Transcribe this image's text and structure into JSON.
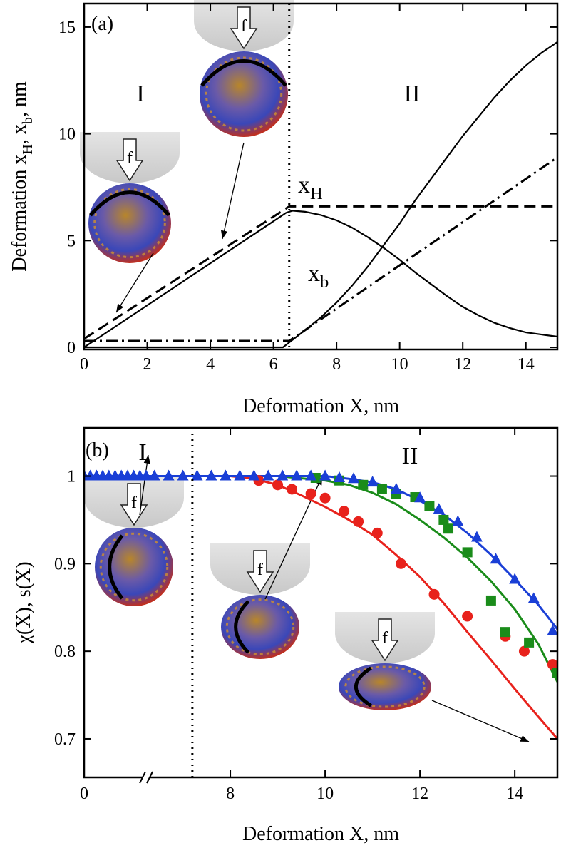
{
  "chart_data": [
    {
      "type": "line",
      "annotations": [
        "(a)",
        "I",
        "II",
        [
          "x",
          "H"
        ],
        [
          "x",
          "b"
        ]
      ],
      "xlabel": "Deformation X, nm",
      "ylabel": [
        "Deformation x",
        "H",
        ", x",
        "b",
        ", nm"
      ],
      "xlim": [
        0,
        15
      ],
      "xticks": [
        0,
        2,
        4,
        6,
        8,
        10,
        12,
        14
      ],
      "ylim": [
        -0.1,
        16.1
      ],
      "yticks": [
        0,
        5,
        10,
        15
      ],
      "divider": 6.5,
      "inset_labels": [
        "f",
        "f"
      ],
      "series": [
        {
          "color": "#000000",
          "style": "solid",
          "x": [
            0,
            6.4,
            6.6,
            7,
            7.5,
            8,
            8.5,
            9,
            9.5,
            10,
            10.5,
            11,
            11.5,
            12,
            12.5,
            13,
            13.5,
            14,
            14.5,
            15
          ],
          "values": [
            0,
            6.3,
            6.4,
            6.35,
            6.2,
            5.95,
            5.6,
            5.15,
            4.65,
            4.1,
            3.5,
            2.95,
            2.4,
            1.9,
            1.5,
            1.15,
            0.9,
            0.7,
            0.6,
            0.5
          ]
        },
        {
          "color": "#000000",
          "style": "solid",
          "x": [
            0,
            6.3,
            7,
            7.5,
            8,
            8.5,
            9,
            9.5,
            10,
            10.5,
            11,
            11.5,
            12,
            12.5,
            13,
            13.5,
            14,
            14.5,
            15
          ],
          "values": [
            0,
            0,
            0.8,
            1.4,
            2.1,
            2.9,
            3.8,
            4.8,
            5.8,
            6.9,
            7.9,
            8.9,
            9.9,
            10.8,
            11.7,
            12.5,
            13.2,
            13.8,
            14.3
          ]
        },
        {
          "color": "#000000",
          "style": "dashed",
          "x": [
            0,
            6.5,
            15
          ],
          "values": [
            0.4,
            6.6,
            6.6
          ]
        },
        {
          "color": "#000000",
          "style": "dashdot",
          "x": [
            0,
            6.5,
            15
          ],
          "values": [
            0.3,
            0.3,
            8.9
          ]
        }
      ]
    },
    {
      "type": "scatter",
      "annotations": [
        "(b)",
        "I",
        "II"
      ],
      "xlabel": "Deformation X, nm",
      "ylabel": "χ(X),  s(X)",
      "xsegments": [
        {
          "xlim": [
            0,
            2
          ],
          "xticks": [
            0
          ]
        },
        {
          "xlim": [
            6.3,
            14.9
          ],
          "xticks": [
            8,
            10,
            12,
            14
          ]
        }
      ],
      "ylim": [
        0.656,
        1.055
      ],
      "yticks": [
        0.7,
        0.8,
        0.9,
        1
      ],
      "divider": 7.2,
      "inset_labels": [
        "f",
        "f",
        "f"
      ],
      "series": [
        {
          "color": "#e8221c",
          "kind": "line",
          "x": [
            0,
            2,
            6.3,
            8,
            8.5,
            9,
            9.5,
            10,
            10.5,
            11,
            11.5,
            12,
            12.5,
            13,
            13.5,
            14,
            14.5,
            14.9
          ],
          "values": [
            1,
            1,
            1,
            1,
            0.997,
            0.99,
            0.978,
            0.965,
            0.95,
            0.933,
            0.91,
            0.885,
            0.855,
            0.822,
            0.79,
            0.757,
            0.725,
            0.7
          ]
        },
        {
          "color": "#1a8c1a",
          "kind": "line",
          "x": [
            0,
            2,
            6.3,
            9,
            10,
            10.5,
            11,
            11.5,
            12,
            12.5,
            13,
            13.5,
            14,
            14.5,
            14.9
          ],
          "values": [
            1,
            1,
            1,
            1,
            0.995,
            0.99,
            0.981,
            0.968,
            0.95,
            0.93,
            0.907,
            0.88,
            0.848,
            0.808,
            0.765
          ]
        },
        {
          "color": "#1a3fd6",
          "kind": "line",
          "x": [
            0,
            2,
            6.3,
            10,
            10.5,
            11,
            11.5,
            12,
            12.5,
            13,
            13.5,
            14,
            14.5,
            14.9
          ],
          "values": [
            1,
            1,
            1,
            1,
            0.997,
            0.993,
            0.985,
            0.972,
            0.956,
            0.935,
            0.91,
            0.882,
            0.853,
            0.825
          ]
        },
        {
          "color": "#e8221c",
          "kind": "points",
          "marker": "circle",
          "x": [
            8.6,
            9.0,
            9.3,
            9.7,
            10.0,
            10.4,
            10.7,
            11.1,
            11.6,
            12.3,
            13.0,
            13.8,
            14.2,
            14.8
          ],
          "values": [
            0.995,
            0.99,
            0.985,
            0.98,
            0.975,
            0.96,
            0.948,
            0.935,
            0.9,
            0.865,
            0.84,
            0.817,
            0.8,
            0.785
          ]
        },
        {
          "color": "#1a8c1a",
          "kind": "points",
          "marker": "square",
          "x": [
            9.8,
            10.3,
            10.8,
            11.2,
            11.5,
            11.9,
            12.2,
            12.5,
            12.6,
            13.0,
            13.5,
            13.8,
            14.3,
            14.9
          ],
          "values": [
            0.998,
            0.995,
            0.99,
            0.985,
            0.98,
            0.976,
            0.966,
            0.95,
            0.94,
            0.913,
            0.858,
            0.822,
            0.81,
            0.775
          ]
        },
        {
          "color": "#1a3fd6",
          "kind": "points",
          "marker": "triangle",
          "x": [
            0,
            0.2,
            0.4,
            0.6,
            0.8,
            1,
            1.2,
            1.4,
            1.6,
            1.8,
            2,
            6.4,
            6.7,
            7,
            7.3,
            7.6,
            7.9,
            8.2,
            8.5,
            8.8,
            9.1,
            9.4,
            9.7,
            10,
            10.3,
            10.6,
            11,
            11.5,
            12,
            12.4,
            12.8,
            13.2,
            13.6,
            14,
            14.4,
            14.8
          ],
          "values": [
            1,
            1,
            1,
            1,
            1,
            1,
            1,
            1,
            1,
            1,
            1,
            1,
            1,
            1,
            1,
            1,
            1,
            1,
            1,
            1,
            1,
            1,
            1,
            1,
            0.998,
            0.997,
            0.993,
            0.985,
            0.975,
            0.962,
            0.948,
            0.93,
            0.905,
            0.882,
            0.86,
            0.823
          ]
        }
      ]
    }
  ]
}
